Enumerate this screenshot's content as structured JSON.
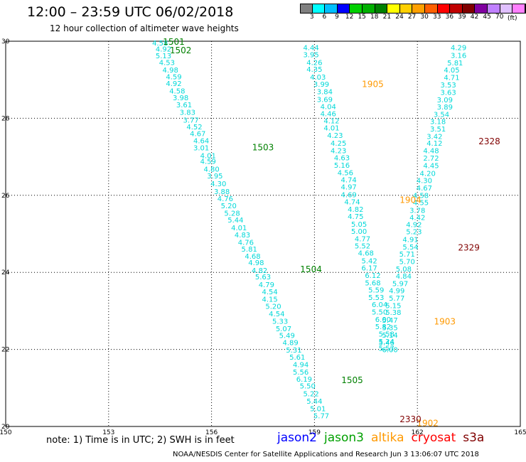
{
  "header": {
    "title": "12:00  –  23:59  UTC  06/02/2018",
    "subtitle": "12 hour collection of altimeter wave heights"
  },
  "colorbar": {
    "unit": "(ft)",
    "colors": [
      "#808080",
      "#00ffff",
      "#00bfff",
      "#0000ff",
      "#00d000",
      "#00b000",
      "#008000",
      "#ffff00",
      "#ffd000",
      "#ffa000",
      "#ff6000",
      "#ff0000",
      "#c00000",
      "#800000",
      "#8000a0",
      "#c080ff",
      "#e0c0ff",
      "#ff80ff",
      "#000000"
    ],
    "ticks": [
      "3",
      "6",
      "9",
      "12",
      "15",
      "18",
      "21",
      "24",
      "27",
      "30",
      "33",
      "36",
      "39",
      "42",
      "45",
      "70"
    ]
  },
  "chart_data": {
    "type": "scatter",
    "xlim": [
      150,
      165
    ],
    "ylim": [
      20,
      30
    ],
    "x_ticks": [
      "150",
      "153",
      "156",
      "159",
      "162",
      "165"
    ],
    "y_ticks": [
      "30",
      "28",
      "26",
      "24",
      "22",
      "20"
    ],
    "grid": true,
    "tracks": [
      {
        "id": "t1",
        "points": [
          [
            154.5,
            29.96,
            "4.58"
          ],
          [
            154.6,
            29.81,
            "4.92"
          ],
          [
            154.6,
            29.63,
            "5.13"
          ],
          [
            154.7,
            29.46,
            "4.53"
          ],
          [
            154.8,
            29.26,
            "4.98"
          ],
          [
            154.9,
            29.09,
            "4.59"
          ],
          [
            154.9,
            28.91,
            "4.92"
          ],
          [
            155.0,
            28.72,
            "4.58"
          ],
          [
            155.1,
            28.54,
            "3.98"
          ],
          [
            155.2,
            28.36,
            "3.61"
          ],
          [
            155.3,
            28.16,
            "3.83"
          ],
          [
            155.4,
            27.96,
            "3.77"
          ],
          [
            155.5,
            27.79,
            "4.52"
          ],
          [
            155.6,
            27.61,
            "4.67"
          ],
          [
            155.7,
            27.43,
            "4.64"
          ],
          [
            155.7,
            27.24,
            "3.01"
          ],
          [
            155.9,
            27.04,
            "4.01"
          ],
          [
            155.9,
            26.89,
            "4.59"
          ],
          [
            156.0,
            26.69,
            "4.80"
          ],
          [
            156.1,
            26.51,
            "3.95"
          ],
          [
            156.2,
            26.31,
            "4.30"
          ],
          [
            156.3,
            26.11,
            "3.88"
          ],
          [
            156.4,
            25.92,
            "4.76"
          ],
          [
            156.5,
            25.74,
            "5.20"
          ],
          [
            156.6,
            25.54,
            "5.28"
          ],
          [
            156.7,
            25.37,
            "5.44"
          ],
          [
            156.8,
            25.17,
            "4.01"
          ],
          [
            156.9,
            24.98,
            "4.83"
          ],
          [
            157.0,
            24.79,
            "4.76"
          ],
          [
            157.1,
            24.61,
            "5.81"
          ],
          [
            157.2,
            24.43,
            "4.68"
          ],
          [
            157.3,
            24.26,
            "4.98"
          ],
          [
            157.4,
            24.06,
            "4.82"
          ],
          [
            157.5,
            23.89,
            "5.63"
          ],
          [
            157.6,
            23.69,
            "4.79"
          ],
          [
            157.7,
            23.51,
            "4.54"
          ],
          [
            157.7,
            23.31,
            "4.15"
          ],
          [
            157.8,
            23.13,
            "5.20"
          ],
          [
            157.9,
            22.93,
            "4.54"
          ],
          [
            158.0,
            22.74,
            "5.33"
          ],
          [
            158.1,
            22.55,
            "5.07"
          ],
          [
            158.2,
            22.37,
            "5.49"
          ],
          [
            158.3,
            22.19,
            "4.89"
          ],
          [
            158.4,
            21.99,
            "5.31"
          ],
          [
            158.5,
            21.81,
            "5.61"
          ],
          [
            158.6,
            21.61,
            "4.94"
          ],
          [
            158.6,
            21.42,
            "5.56"
          ],
          [
            158.7,
            21.24,
            "6.19"
          ],
          [
            158.8,
            21.06,
            "5.50"
          ],
          [
            158.9,
            20.86,
            "5.22"
          ],
          [
            159.0,
            20.66,
            "5.44"
          ],
          [
            159.1,
            20.47,
            "5.01"
          ],
          [
            159.2,
            20.29,
            "5.77"
          ]
        ]
      },
      {
        "id": "t2",
        "points": [
          [
            158.9,
            29.84,
            "4.44"
          ],
          [
            158.9,
            29.66,
            "3.95"
          ],
          [
            159.0,
            29.46,
            "4.26"
          ],
          [
            159.0,
            29.28,
            "4.35"
          ],
          [
            159.1,
            29.08,
            "4.03"
          ],
          [
            159.2,
            28.89,
            "3.99"
          ],
          [
            159.3,
            28.7,
            "3.84"
          ],
          [
            159.3,
            28.5,
            "3.69"
          ],
          [
            159.4,
            28.31,
            "4.04"
          ],
          [
            159.4,
            28.13,
            "4.46"
          ],
          [
            159.5,
            27.94,
            "4.12"
          ],
          [
            159.5,
            27.76,
            "4.01"
          ],
          [
            159.6,
            27.56,
            "4.23"
          ],
          [
            159.7,
            27.36,
            "4.25"
          ],
          [
            159.7,
            27.17,
            "4.23"
          ],
          [
            159.8,
            26.98,
            "4.63"
          ],
          [
            159.8,
            26.79,
            "5.16"
          ],
          [
            159.9,
            26.6,
            "4.56"
          ],
          [
            160.0,
            26.41,
            "4.74"
          ],
          [
            160.0,
            26.23,
            "4.97"
          ],
          [
            160.0,
            26.02,
            "4.69"
          ],
          [
            160.1,
            25.84,
            "4.74"
          ],
          [
            160.2,
            25.65,
            "4.82"
          ],
          [
            160.2,
            25.46,
            "4.75"
          ],
          [
            160.3,
            25.26,
            "5.05"
          ],
          [
            160.3,
            25.07,
            "5.00"
          ],
          [
            160.4,
            24.88,
            "4.77"
          ],
          [
            160.4,
            24.7,
            "5.52"
          ],
          [
            160.5,
            24.51,
            "4.68"
          ],
          [
            160.6,
            24.31,
            "5.42"
          ],
          [
            160.6,
            24.12,
            "6.17"
          ],
          [
            160.7,
            23.93,
            "6.12"
          ],
          [
            160.7,
            23.74,
            "5.68"
          ],
          [
            160.8,
            23.55,
            "5.59"
          ],
          [
            160.8,
            23.36,
            "5.53"
          ],
          [
            160.9,
            23.17,
            "6.04"
          ],
          [
            160.9,
            22.98,
            "5.50"
          ],
          [
            161.0,
            22.79,
            "6.00"
          ],
          [
            161.0,
            22.6,
            "5.82"
          ],
          [
            161.1,
            22.41,
            "5.58"
          ],
          [
            161.1,
            22.21,
            "5.24"
          ],
          [
            161.1,
            22.04,
            "5.57"
          ]
        ]
      },
      {
        "id": "t3",
        "points": [
          [
            163.2,
            29.84,
            "4.29"
          ],
          [
            163.2,
            29.64,
            "3.16"
          ],
          [
            163.1,
            29.45,
            "5.81"
          ],
          [
            163.0,
            29.26,
            "4.05"
          ],
          [
            163.0,
            29.07,
            "4.71"
          ],
          [
            162.9,
            28.87,
            "3.53"
          ],
          [
            162.9,
            28.68,
            "3.63"
          ],
          [
            162.8,
            28.49,
            "3.09"
          ],
          [
            162.8,
            28.3,
            "3.89"
          ],
          [
            162.7,
            28.11,
            "3.54"
          ],
          [
            162.6,
            27.92,
            "3.18"
          ],
          [
            162.6,
            27.73,
            "3.51"
          ],
          [
            162.5,
            27.54,
            "3.42"
          ],
          [
            162.5,
            27.36,
            "4.12"
          ],
          [
            162.4,
            27.17,
            "4.48"
          ],
          [
            162.4,
            26.97,
            "2.72"
          ],
          [
            162.4,
            26.78,
            "4.45"
          ],
          [
            162.3,
            26.58,
            "4.20"
          ],
          [
            162.2,
            26.39,
            "4.30"
          ],
          [
            162.2,
            26.2,
            "4.67"
          ],
          [
            162.1,
            26.01,
            "4.58"
          ],
          [
            162.1,
            25.82,
            "4.55"
          ],
          [
            162.0,
            25.62,
            "3.78"
          ],
          [
            162.0,
            25.43,
            "4.42"
          ],
          [
            161.9,
            25.25,
            "4.92"
          ],
          [
            161.9,
            25.06,
            "5.23"
          ],
          [
            161.8,
            24.86,
            "4.91"
          ],
          [
            161.8,
            24.67,
            "5.54"
          ],
          [
            161.7,
            24.48,
            "5.71"
          ],
          [
            161.7,
            24.29,
            "5.70"
          ],
          [
            161.6,
            24.1,
            "5.08"
          ],
          [
            161.6,
            23.91,
            "4.84"
          ],
          [
            161.5,
            23.72,
            "5.97"
          ],
          [
            161.4,
            23.53,
            "4.99"
          ],
          [
            161.4,
            23.34,
            "5.77"
          ],
          [
            161.3,
            23.15,
            "5.15"
          ],
          [
            161.3,
            22.97,
            "5.38"
          ],
          [
            161.2,
            22.77,
            "5.47"
          ],
          [
            161.2,
            22.57,
            "5.35"
          ],
          [
            161.2,
            22.38,
            "5.14"
          ],
          [
            161.1,
            22.19,
            "5.46"
          ],
          [
            161.2,
            22.0,
            "6.00"
          ]
        ]
      }
    ],
    "pass_labels": [
      {
        "x": 154.9,
        "y": 29.98,
        "text": "1501",
        "color": "#008000"
      },
      {
        "x": 155.1,
        "y": 29.76,
        "text": "1502",
        "color": "#008000"
      },
      {
        "x": 157.5,
        "y": 27.24,
        "text": "1503",
        "color": "#008000"
      },
      {
        "x": 158.9,
        "y": 24.08,
        "text": "1504",
        "color": "#008000"
      },
      {
        "x": 160.1,
        "y": 21.2,
        "text": "1505",
        "color": "#008000"
      },
      {
        "x": 160.7,
        "y": 28.88,
        "text": "1905",
        "color": "#ff9900"
      },
      {
        "x": 161.8,
        "y": 25.88,
        "text": "1904",
        "color": "#ff9900"
      },
      {
        "x": 162.8,
        "y": 22.72,
        "text": "1903",
        "color": "#ff9900"
      },
      {
        "x": 162.3,
        "y": 20.08,
        "text": "1902",
        "color": "#ff9900"
      },
      {
        "x": 164.1,
        "y": 27.4,
        "text": "2328",
        "color": "#800000"
      },
      {
        "x": 163.5,
        "y": 24.64,
        "text": "2329",
        "color": "#800000"
      },
      {
        "x": 161.8,
        "y": 20.18,
        "text": "2330",
        "color": "#800000"
      }
    ]
  },
  "footer": {
    "note": "note:  1) Time is in UTC;  2) SWH is in feet",
    "satellites": [
      {
        "name": "jason2",
        "color": "#0000ff"
      },
      {
        "name": "jason3",
        "color": "#00a000"
      },
      {
        "name": "altika",
        "color": "#ff9900"
      },
      {
        "name": "cryosat",
        "color": "#ff0000"
      },
      {
        "name": "s3a",
        "color": "#800000"
      }
    ],
    "credit": "NOAA/NESDIS Center for Satellite Applications and Research    Jun  3 13:06:07 UTC 2018"
  }
}
